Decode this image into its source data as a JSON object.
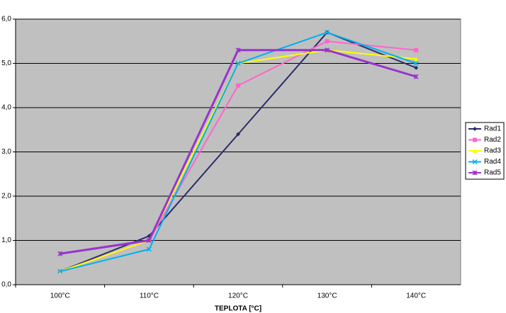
{
  "chart_data": {
    "type": "line",
    "x_label": "TEPLOTA [°C]",
    "categories": [
      "100°C",
      "110°C",
      "120°C",
      "130°C",
      "140°C"
    ],
    "series": [
      {
        "name": "Rad1",
        "color": "#2b2b6b",
        "values": [
          0.3,
          1.1,
          3.4,
          5.7,
          4.9
        ]
      },
      {
        "name": "Rad2",
        "color": "#ff66cc",
        "values": [
          0.3,
          1.0,
          4.5,
          5.5,
          5.3
        ]
      },
      {
        "name": "Rad3",
        "color": "#ffff00",
        "values": [
          0.3,
          1.0,
          5.0,
          5.3,
          5.1
        ]
      },
      {
        "name": "Rad4",
        "color": "#00b0f0",
        "values": [
          0.3,
          0.8,
          5.0,
          5.7,
          5.0
        ]
      },
      {
        "name": "Rad5",
        "color": "#9933cc",
        "values": [
          0.7,
          1.0,
          5.3,
          5.3,
          4.7
        ]
      }
    ],
    "ylim": [
      0,
      6
    ],
    "yticks": [
      {
        "value": 0,
        "label": "0,0"
      },
      {
        "value": 1,
        "label": "1,0"
      },
      {
        "value": 2,
        "label": "2,0"
      },
      {
        "value": 3,
        "label": "3,0"
      },
      {
        "value": 4,
        "label": "4,0"
      },
      {
        "value": 5,
        "label": "5,0"
      },
      {
        "value": 6,
        "label": "6,0"
      }
    ],
    "grid": true,
    "legend": "right"
  }
}
